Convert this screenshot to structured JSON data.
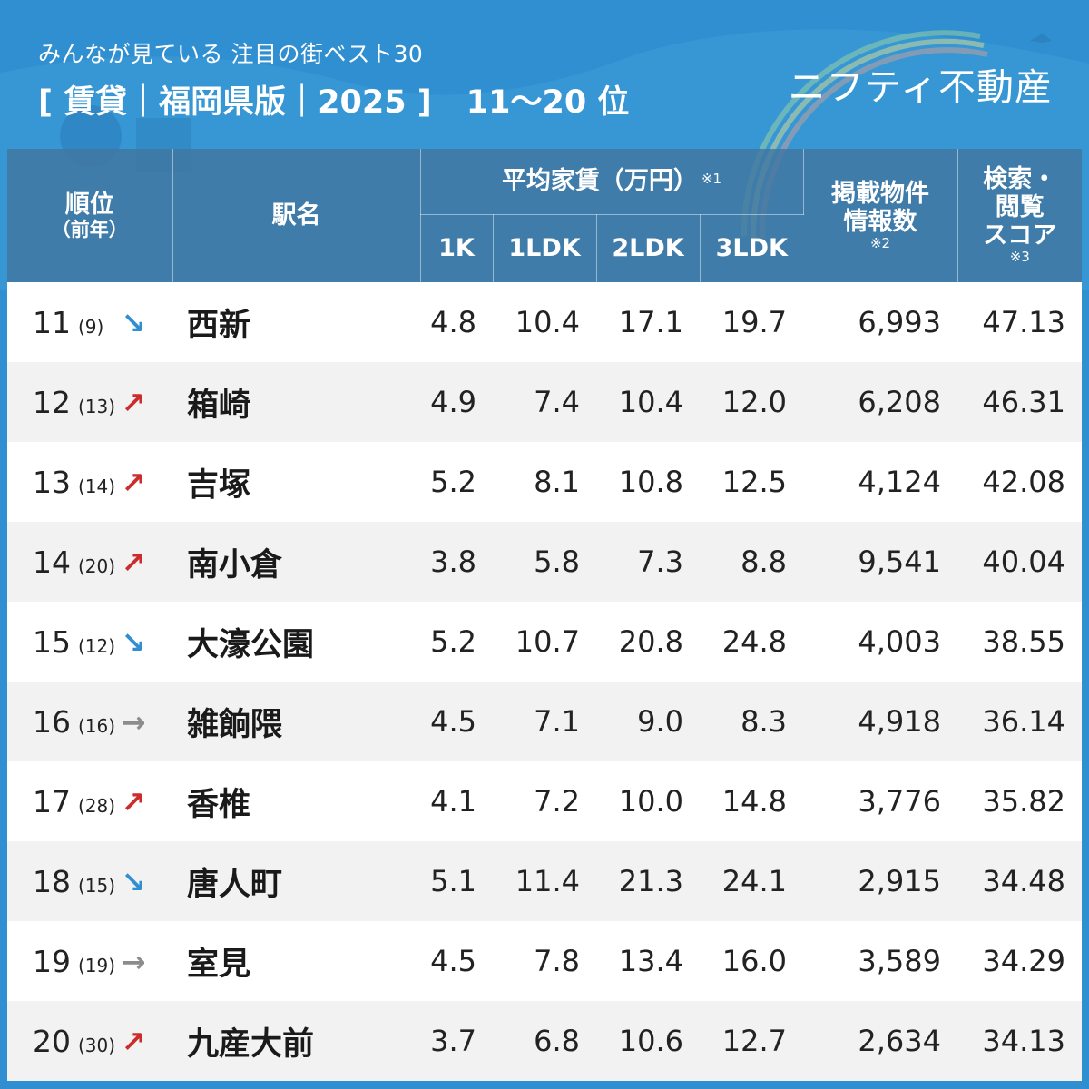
{
  "header": {
    "subtitle": "みんなが見ている 注目の街ベスト30",
    "title": "[ 賃貸｜福岡県版｜2025 ]",
    "ranks": "11～20 位",
    "brand": "ニフティ不動産"
  },
  "colors": {
    "background": "#2f8fd0",
    "header_cell": "#4276a0",
    "arrow_up": "#cc2c2c",
    "arrow_down": "#2f8fd0",
    "arrow_flat": "#8c8c8c"
  },
  "table": {
    "headers": {
      "rank": "順位",
      "prev_year": "（前年）",
      "station": "駅名",
      "avg_rent": "平均家賃（万円）",
      "avg_rent_note": "※1",
      "rooms": [
        "1K",
        "1LDK",
        "2LDK",
        "3LDK"
      ],
      "listings_l1": "掲載物件",
      "listings_l2": "情報数",
      "listings_note": "※2",
      "score_l1": "検索・",
      "score_l2": "閲覧",
      "score_l3": "スコア",
      "score_note": "※3"
    },
    "rows": [
      {
        "rank": "11",
        "prev": "(9)",
        "trend": "down",
        "arrow": "↘",
        "name": "西新",
        "k1": "4.8",
        "ldk1": "10.4",
        "ldk2": "17.1",
        "ldk3": "19.7",
        "listings": "6,993",
        "score": "47.13"
      },
      {
        "rank": "12",
        "prev": "(13)",
        "trend": "up",
        "arrow": "↗",
        "name": "箱崎",
        "k1": "4.9",
        "ldk1": "7.4",
        "ldk2": "10.4",
        "ldk3": "12.0",
        "listings": "6,208",
        "score": "46.31"
      },
      {
        "rank": "13",
        "prev": "(14)",
        "trend": "up",
        "arrow": "↗",
        "name": "吉塚",
        "k1": "5.2",
        "ldk1": "8.1",
        "ldk2": "10.8",
        "ldk3": "12.5",
        "listings": "4,124",
        "score": "42.08"
      },
      {
        "rank": "14",
        "prev": "(20)",
        "trend": "up",
        "arrow": "↗",
        "name": "南小倉",
        "k1": "3.8",
        "ldk1": "5.8",
        "ldk2": "7.3",
        "ldk3": "8.8",
        "listings": "9,541",
        "score": "40.04"
      },
      {
        "rank": "15",
        "prev": "(12)",
        "trend": "down",
        "arrow": "↘",
        "name": "大濠公園",
        "k1": "5.2",
        "ldk1": "10.7",
        "ldk2": "20.8",
        "ldk3": "24.8",
        "listings": "4,003",
        "score": "38.55"
      },
      {
        "rank": "16",
        "prev": "(16)",
        "trend": "flat",
        "arrow": "→",
        "name": "雑餉隈",
        "k1": "4.5",
        "ldk1": "7.1",
        "ldk2": "9.0",
        "ldk3": "8.3",
        "listings": "4,918",
        "score": "36.14"
      },
      {
        "rank": "17",
        "prev": "(28)",
        "trend": "up",
        "arrow": "↗",
        "name": "香椎",
        "k1": "4.1",
        "ldk1": "7.2",
        "ldk2": "10.0",
        "ldk3": "14.8",
        "listings": "3,776",
        "score": "35.82"
      },
      {
        "rank": "18",
        "prev": "(15)",
        "trend": "down",
        "arrow": "↘",
        "name": "唐人町",
        "k1": "5.1",
        "ldk1": "11.4",
        "ldk2": "21.3",
        "ldk3": "24.1",
        "listings": "2,915",
        "score": "34.48"
      },
      {
        "rank": "19",
        "prev": "(19)",
        "trend": "flat",
        "arrow": "→",
        "name": "室見",
        "k1": "4.5",
        "ldk1": "7.8",
        "ldk2": "13.4",
        "ldk3": "16.0",
        "listings": "3,589",
        "score": "34.29"
      },
      {
        "rank": "20",
        "prev": "(30)",
        "trend": "up",
        "arrow": "↗",
        "name": "九産大前",
        "k1": "3.7",
        "ldk1": "6.8",
        "ldk2": "10.6",
        "ldk3": "12.7",
        "listings": "2,634",
        "score": "34.13"
      }
    ]
  }
}
